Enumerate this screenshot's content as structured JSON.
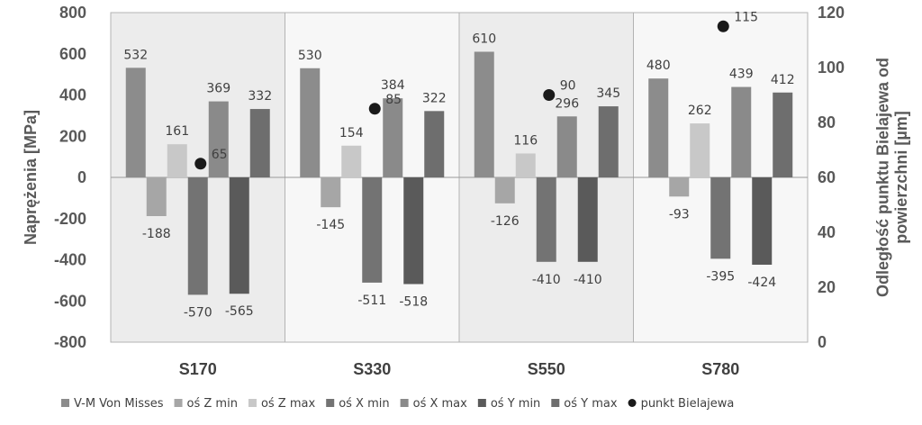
{
  "chart_data": {
    "type": "bar",
    "categories": [
      "S170",
      "S330",
      "S550",
      "S780"
    ],
    "series": [
      {
        "name": "V-M Von Misses",
        "values": [
          532,
          530,
          610,
          480
        ],
        "color": "#8c8c8c"
      },
      {
        "name": "oś Z min",
        "values": [
          -188,
          -145,
          -126,
          -93
        ],
        "color": "#a6a6a6"
      },
      {
        "name": "oś Z max",
        "values": [
          161,
          154,
          116,
          262
        ],
        "color": "#c8c8c8"
      },
      {
        "name": "oś X min",
        "values": [
          -570,
          -511,
          -410,
          -395
        ],
        "color": "#737373"
      },
      {
        "name": "oś X max",
        "values": [
          369,
          384,
          296,
          439
        ],
        "color": "#8a8a8a"
      },
      {
        "name": "oś Y min",
        "values": [
          -565,
          -518,
          -410,
          -424
        ],
        "color": "#5a5a5a"
      },
      {
        "name": "oś Y max",
        "values": [
          332,
          322,
          345,
          412
        ],
        "color": "#6e6e6e"
      }
    ],
    "secondary_series": {
      "name": "punkt Bielajewa",
      "type": "scatter",
      "values": [
        65,
        85,
        90,
        115
      ],
      "color": "#1a1a1a"
    },
    "ylabel": "Naprężenia [MPa]",
    "y2label": "Odległość punktu Bielajewa od powierzchni [µm]",
    "ylim": [
      -800,
      800
    ],
    "yticks": [
      -800,
      -600,
      -400,
      -200,
      0,
      200,
      400,
      600,
      800
    ],
    "y2lim": [
      0,
      120
    ],
    "y2ticks": [
      0,
      20,
      40,
      60,
      80,
      100,
      120
    ],
    "panel_shading": [
      "#ececec",
      "#f7f7f7",
      "#ececec",
      "#f7f7f7"
    ],
    "legend_position": "bottom"
  }
}
